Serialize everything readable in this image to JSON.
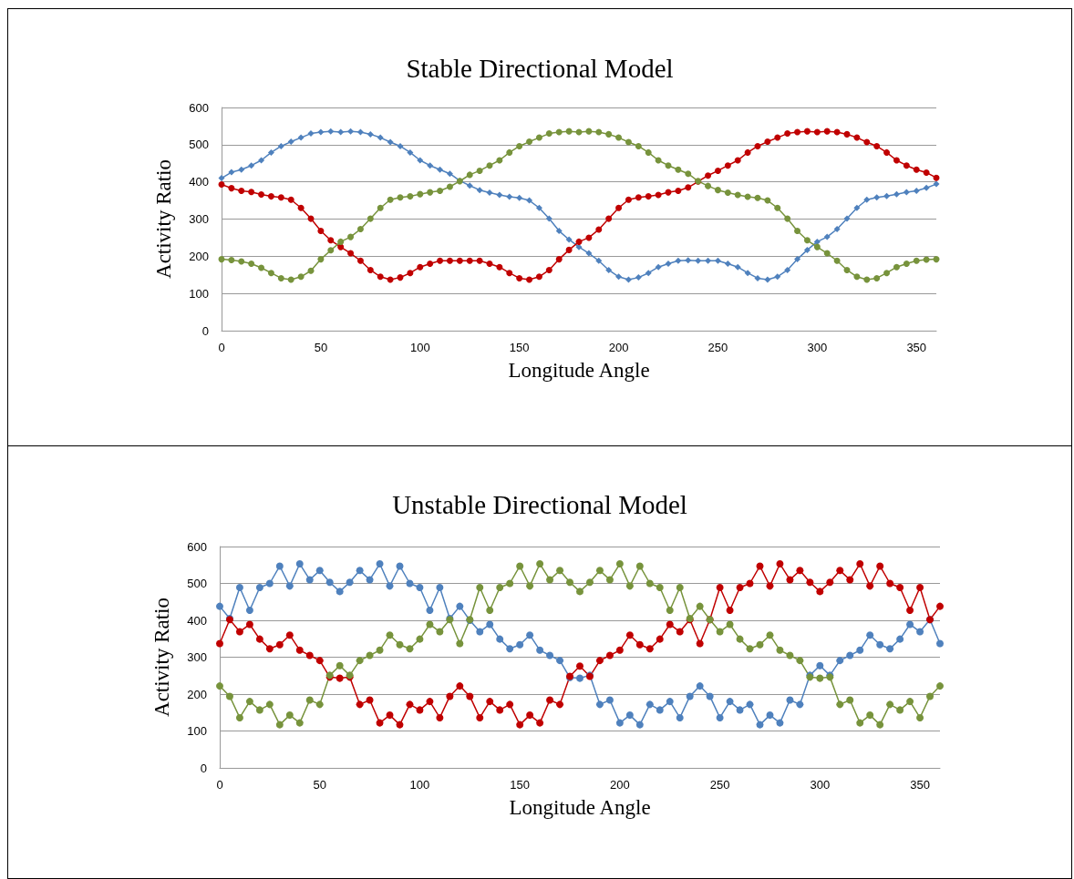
{
  "chart_data": [
    {
      "type": "line",
      "title": "Stable Directional Model",
      "xlabel": "Longitude Angle",
      "ylabel": "Activity Ratio",
      "x": [
        0,
        5,
        10,
        15,
        20,
        25,
        30,
        35,
        40,
        45,
        50,
        55,
        60,
        65,
        70,
        75,
        80,
        85,
        90,
        95,
        100,
        105,
        110,
        115,
        120,
        125,
        130,
        135,
        140,
        145,
        150,
        155,
        160,
        165,
        170,
        175,
        180,
        185,
        190,
        195,
        200,
        205,
        210,
        215,
        220,
        225,
        230,
        235,
        240,
        245,
        250,
        255,
        260,
        265,
        270,
        275,
        280,
        285,
        290,
        295,
        300,
        305,
        310,
        315,
        320,
        325,
        330,
        335,
        340,
        345,
        350,
        355,
        360
      ],
      "xlim": [
        0,
        360
      ],
      "xticks": [
        0,
        50,
        100,
        150,
        200,
        250,
        300,
        350
      ],
      "ylim": [
        0,
        600
      ],
      "yticks": [
        0,
        100,
        200,
        300,
        400,
        500,
        600
      ],
      "grid": "y",
      "series": [
        {
          "color": "#4f81bd",
          "marker": "diamond",
          "values": [
            410,
            426,
            433,
            444,
            458,
            479,
            496,
            508,
            519,
            530,
            534,
            536,
            534,
            536,
            534,
            528,
            519,
            507,
            496,
            479,
            458,
            444,
            433,
            422,
            403,
            390,
            378,
            371,
            365,
            360,
            357,
            350,
            330,
            301,
            268,
            245,
            225,
            208,
            188,
            163,
            145,
            137,
            143,
            155,
            171,
            180,
            188,
            189,
            188,
            188,
            188,
            180,
            171,
            155,
            141,
            137,
            145,
            163,
            192,
            217,
            239,
            252,
            273,
            301,
            330,
            352,
            358,
            362,
            367,
            372,
            376,
            384,
            394
          ]
        },
        {
          "color": "#c00000",
          "marker": "circle",
          "values": [
            393,
            383,
            376,
            373,
            366,
            361,
            358,
            352,
            330,
            301,
            268,
            243,
            225,
            208,
            188,
            163,
            145,
            137,
            143,
            155,
            171,
            180,
            188,
            188,
            188,
            188,
            188,
            180,
            171,
            155,
            141,
            137,
            145,
            163,
            192,
            217,
            239,
            250,
            272,
            301,
            330,
            352,
            358,
            361,
            365,
            372,
            376,
            385,
            401,
            417,
            430,
            444,
            458,
            479,
            496,
            508,
            519,
            530,
            534,
            536,
            534,
            536,
            534,
            528,
            519,
            507,
            496,
            479,
            458,
            444,
            433,
            425,
            411
          ]
        },
        {
          "color": "#77933c",
          "marker": "circle",
          "values": [
            192,
            190,
            186,
            180,
            169,
            155,
            141,
            137,
            145,
            161,
            192,
            216,
            239,
            252,
            273,
            301,
            330,
            352,
            358,
            361,
            367,
            372,
            376,
            387,
            402,
            419,
            430,
            444,
            458,
            479,
            496,
            508,
            519,
            530,
            534,
            536,
            534,
            536,
            534,
            528,
            519,
            507,
            496,
            479,
            458,
            444,
            433,
            422,
            402,
            389,
            378,
            371,
            365,
            360,
            357,
            350,
            330,
            301,
            268,
            243,
            225,
            208,
            188,
            163,
            145,
            137,
            141,
            155,
            171,
            180,
            188,
            191,
            192
          ]
        }
      ]
    },
    {
      "type": "line",
      "title": "Unstable Directional Model",
      "xlabel": "Longitude Angle",
      "ylabel": "Activity Ratio",
      "x": [
        0,
        5,
        10,
        15,
        20,
        25,
        30,
        35,
        40,
        45,
        50,
        55,
        60,
        65,
        70,
        75,
        80,
        85,
        90,
        95,
        100,
        105,
        110,
        115,
        120,
        125,
        130,
        135,
        140,
        145,
        150,
        155,
        160,
        165,
        170,
        175,
        180,
        185,
        190,
        195,
        200,
        205,
        210,
        215,
        220,
        225,
        230,
        235,
        240,
        245,
        250,
        255,
        260,
        265,
        270,
        275,
        280,
        285,
        290,
        295,
        300,
        305,
        310,
        315,
        320,
        325,
        330,
        335,
        340,
        345,
        350,
        355,
        360
      ],
      "xlim": [
        0,
        360
      ],
      "xticks": [
        0,
        50,
        100,
        150,
        200,
        250,
        300,
        350
      ],
      "ylim": [
        0,
        600
      ],
      "yticks": [
        0,
        100,
        200,
        300,
        400,
        500,
        600
      ],
      "grid": "y",
      "series": [
        {
          "color": "#4f81bd",
          "marker": "circle",
          "values": [
            438,
            405,
            489,
            427,
            489,
            500,
            547,
            493,
            553,
            510,
            535,
            503,
            478,
            503,
            535,
            510,
            553,
            493,
            547,
            500,
            489,
            427,
            489,
            405,
            438,
            400,
            369,
            389,
            349,
            323,
            334,
            360,
            319,
            305,
            291,
            245,
            243,
            251,
            172,
            184,
            122,
            143,
            117,
            172,
            157,
            180,
            136,
            194,
            222,
            194,
            136,
            180,
            157,
            172,
            117,
            143,
            122,
            184,
            172,
            251,
            277,
            251,
            291,
            305,
            319,
            360,
            334,
            323,
            349,
            389,
            369,
            402,
            337
          ]
        },
        {
          "color": "#c00000",
          "marker": "circle",
          "values": [
            337,
            402,
            369,
            389,
            349,
            323,
            334,
            360,
            319,
            305,
            291,
            246,
            243,
            246,
            172,
            184,
            122,
            143,
            117,
            172,
            157,
            180,
            136,
            194,
            222,
            194,
            136,
            180,
            157,
            172,
            117,
            143,
            122,
            184,
            172,
            248,
            276,
            248,
            291,
            305,
            319,
            360,
            334,
            323,
            349,
            389,
            369,
            402,
            337,
            402,
            489,
            427,
            489,
            500,
            547,
            493,
            553,
            510,
            535,
            503,
            478,
            503,
            535,
            510,
            553,
            493,
            547,
            500,
            489,
            427,
            489,
            402,
            438
          ]
        },
        {
          "color": "#77933c",
          "marker": "circle",
          "values": [
            222,
            194,
            136,
            180,
            157,
            172,
            117,
            143,
            122,
            184,
            172,
            251,
            277,
            251,
            291,
            305,
            319,
            360,
            334,
            323,
            349,
            389,
            369,
            402,
            337,
            402,
            489,
            427,
            489,
            500,
            547,
            493,
            553,
            510,
            535,
            503,
            478,
            503,
            535,
            510,
            553,
            493,
            547,
            500,
            489,
            427,
            489,
            405,
            438,
            402,
            369,
            389,
            349,
            323,
            334,
            360,
            319,
            305,
            291,
            246,
            243,
            246,
            172,
            184,
            122,
            143,
            117,
            172,
            157,
            180,
            136,
            194,
            222
          ]
        }
      ]
    }
  ]
}
